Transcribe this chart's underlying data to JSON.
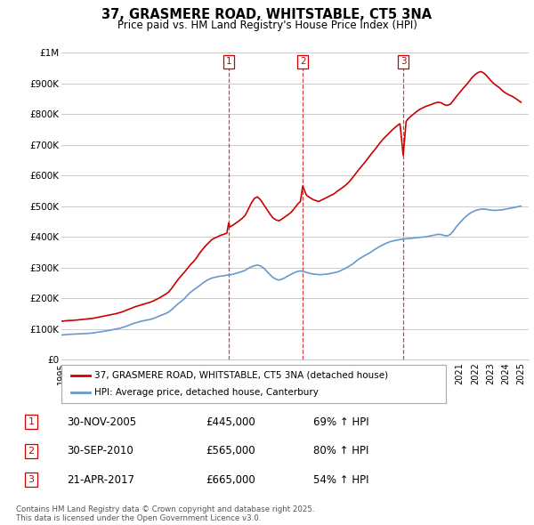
{
  "title": "37, GRASMERE ROAD, WHITSTABLE, CT5 3NA",
  "subtitle": "Price paid vs. HM Land Registry's House Price Index (HPI)",
  "x_start": 1995.0,
  "x_end": 2025.5,
  "y_min": 0,
  "y_max": 1000000,
  "y_ticks": [
    0,
    100000,
    200000,
    300000,
    400000,
    500000,
    600000,
    700000,
    800000,
    900000,
    1000000
  ],
  "y_tick_labels": [
    "£0",
    "£100K",
    "£200K",
    "£300K",
    "£400K",
    "£500K",
    "£600K",
    "£700K",
    "£800K",
    "£900K",
    "£1M"
  ],
  "vline1_x": 2005.917,
  "vline2_x": 2010.75,
  "vline3_x": 2017.31,
  "red_line_color": "#cc0000",
  "blue_line_color": "#6699cc",
  "vline_color": "#cc0000",
  "grid_color": "#cccccc",
  "background_color": "#ffffff",
  "legend_label_red": "37, GRASMERE ROAD, WHITSTABLE, CT5 3NA (detached house)",
  "legend_label_blue": "HPI: Average price, detached house, Canterbury",
  "transaction1_date": "30-NOV-2005",
  "transaction1_price": "£445,000",
  "transaction1_hpi": "69% ↑ HPI",
  "transaction2_date": "30-SEP-2010",
  "transaction2_price": "£565,000",
  "transaction2_hpi": "80% ↑ HPI",
  "transaction3_date": "21-APR-2017",
  "transaction3_price": "£665,000",
  "transaction3_hpi": "54% ↑ HPI",
  "footer_line1": "Contains HM Land Registry data © Crown copyright and database right 2025.",
  "footer_line2": "This data is licensed under the Open Government Licence v3.0.",
  "red_hpi_data": [
    [
      1995.0,
      125000
    ],
    [
      1995.2,
      126000
    ],
    [
      1995.4,
      127000
    ],
    [
      1995.6,
      127500
    ],
    [
      1995.8,
      128000
    ],
    [
      1996.0,
      129000
    ],
    [
      1996.2,
      130000
    ],
    [
      1996.4,
      131000
    ],
    [
      1996.6,
      132000
    ],
    [
      1996.8,
      133000
    ],
    [
      1997.0,
      134000
    ],
    [
      1997.2,
      136000
    ],
    [
      1997.4,
      138000
    ],
    [
      1997.6,
      140000
    ],
    [
      1997.8,
      142000
    ],
    [
      1998.0,
      144000
    ],
    [
      1998.2,
      146000
    ],
    [
      1998.4,
      148000
    ],
    [
      1998.6,
      150000
    ],
    [
      1998.8,
      153000
    ],
    [
      1999.0,
      156000
    ],
    [
      1999.2,
      160000
    ],
    [
      1999.4,
      164000
    ],
    [
      1999.6,
      168000
    ],
    [
      1999.8,
      172000
    ],
    [
      2000.0,
      175000
    ],
    [
      2000.2,
      178000
    ],
    [
      2000.4,
      181000
    ],
    [
      2000.6,
      184000
    ],
    [
      2000.8,
      187000
    ],
    [
      2001.0,
      191000
    ],
    [
      2001.2,
      196000
    ],
    [
      2001.4,
      201000
    ],
    [
      2001.6,
      207000
    ],
    [
      2001.8,
      213000
    ],
    [
      2002.0,
      220000
    ],
    [
      2002.2,
      232000
    ],
    [
      2002.4,
      246000
    ],
    [
      2002.6,
      260000
    ],
    [
      2002.8,
      272000
    ],
    [
      2003.0,
      283000
    ],
    [
      2003.2,
      295000
    ],
    [
      2003.4,
      308000
    ],
    [
      2003.6,
      318000
    ],
    [
      2003.8,
      330000
    ],
    [
      2004.0,
      345000
    ],
    [
      2004.2,
      358000
    ],
    [
      2004.4,
      370000
    ],
    [
      2004.6,
      380000
    ],
    [
      2004.8,
      390000
    ],
    [
      2005.0,
      396000
    ],
    [
      2005.2,
      400000
    ],
    [
      2005.4,
      405000
    ],
    [
      2005.6,
      408000
    ],
    [
      2005.8,
      412000
    ],
    [
      2005.917,
      445000
    ],
    [
      2006.0,
      432000
    ],
    [
      2006.2,
      438000
    ],
    [
      2006.4,
      445000
    ],
    [
      2006.6,
      452000
    ],
    [
      2006.8,
      460000
    ],
    [
      2007.0,
      470000
    ],
    [
      2007.2,
      490000
    ],
    [
      2007.4,
      510000
    ],
    [
      2007.6,
      525000
    ],
    [
      2007.8,
      530000
    ],
    [
      2008.0,
      520000
    ],
    [
      2008.2,
      505000
    ],
    [
      2008.4,
      490000
    ],
    [
      2008.6,
      475000
    ],
    [
      2008.8,
      462000
    ],
    [
      2009.0,
      455000
    ],
    [
      2009.2,
      452000
    ],
    [
      2009.4,
      458000
    ],
    [
      2009.6,
      465000
    ],
    [
      2009.8,
      472000
    ],
    [
      2010.0,
      480000
    ],
    [
      2010.2,
      492000
    ],
    [
      2010.4,
      505000
    ],
    [
      2010.6,
      515000
    ],
    [
      2010.75,
      565000
    ],
    [
      2011.0,
      535000
    ],
    [
      2011.2,
      528000
    ],
    [
      2011.4,
      522000
    ],
    [
      2011.6,
      518000
    ],
    [
      2011.8,
      515000
    ],
    [
      2012.0,
      520000
    ],
    [
      2012.2,
      525000
    ],
    [
      2012.4,
      530000
    ],
    [
      2012.6,
      535000
    ],
    [
      2012.8,
      540000
    ],
    [
      2013.0,
      548000
    ],
    [
      2013.2,
      555000
    ],
    [
      2013.4,
      562000
    ],
    [
      2013.6,
      570000
    ],
    [
      2013.8,
      580000
    ],
    [
      2014.0,
      592000
    ],
    [
      2014.2,
      605000
    ],
    [
      2014.4,
      618000
    ],
    [
      2014.6,
      630000
    ],
    [
      2014.8,
      642000
    ],
    [
      2015.0,
      655000
    ],
    [
      2015.2,
      668000
    ],
    [
      2015.4,
      680000
    ],
    [
      2015.6,
      693000
    ],
    [
      2015.8,
      706000
    ],
    [
      2016.0,
      718000
    ],
    [
      2016.2,
      728000
    ],
    [
      2016.4,
      738000
    ],
    [
      2016.6,
      748000
    ],
    [
      2016.8,
      757000
    ],
    [
      2017.0,
      765000
    ],
    [
      2017.1,
      768000
    ],
    [
      2017.31,
      665000
    ],
    [
      2017.5,
      775000
    ],
    [
      2017.6,
      782000
    ],
    [
      2017.8,
      792000
    ],
    [
      2018.0,
      800000
    ],
    [
      2018.2,
      808000
    ],
    [
      2018.4,
      815000
    ],
    [
      2018.6,
      820000
    ],
    [
      2018.8,
      825000
    ],
    [
      2019.0,
      828000
    ],
    [
      2019.2,
      832000
    ],
    [
      2019.4,
      836000
    ],
    [
      2019.6,
      838000
    ],
    [
      2019.8,
      836000
    ],
    [
      2020.0,
      830000
    ],
    [
      2020.2,
      828000
    ],
    [
      2020.4,
      832000
    ],
    [
      2020.6,
      845000
    ],
    [
      2020.8,
      858000
    ],
    [
      2021.0,
      870000
    ],
    [
      2021.2,
      882000
    ],
    [
      2021.4,
      893000
    ],
    [
      2021.6,
      905000
    ],
    [
      2021.8,
      918000
    ],
    [
      2022.0,
      928000
    ],
    [
      2022.2,
      935000
    ],
    [
      2022.4,
      938000
    ],
    [
      2022.6,
      932000
    ],
    [
      2022.8,
      922000
    ],
    [
      2023.0,
      910000
    ],
    [
      2023.2,
      900000
    ],
    [
      2023.4,
      892000
    ],
    [
      2023.6,
      885000
    ],
    [
      2023.8,
      875000
    ],
    [
      2024.0,
      868000
    ],
    [
      2024.2,
      862000
    ],
    [
      2024.4,
      858000
    ],
    [
      2024.6,
      852000
    ],
    [
      2024.8,
      845000
    ],
    [
      2025.0,
      838000
    ]
  ],
  "blue_hpi_data": [
    [
      1995.0,
      80000
    ],
    [
      1995.2,
      81000
    ],
    [
      1995.4,
      82000
    ],
    [
      1995.6,
      82500
    ],
    [
      1995.8,
      83000
    ],
    [
      1996.0,
      83500
    ],
    [
      1996.2,
      84000
    ],
    [
      1996.4,
      84500
    ],
    [
      1996.6,
      85000
    ],
    [
      1996.8,
      85500
    ],
    [
      1997.0,
      86500
    ],
    [
      1997.2,
      88000
    ],
    [
      1997.4,
      89500
    ],
    [
      1997.6,
      91000
    ],
    [
      1997.8,
      92500
    ],
    [
      1998.0,
      94000
    ],
    [
      1998.2,
      96000
    ],
    [
      1998.4,
      98000
    ],
    [
      1998.6,
      100000
    ],
    [
      1998.8,
      102000
    ],
    [
      1999.0,
      105000
    ],
    [
      1999.2,
      108000
    ],
    [
      1999.4,
      112000
    ],
    [
      1999.6,
      116000
    ],
    [
      1999.8,
      119000
    ],
    [
      2000.0,
      122000
    ],
    [
      2000.2,
      125000
    ],
    [
      2000.4,
      127000
    ],
    [
      2000.6,
      129000
    ],
    [
      2000.8,
      131000
    ],
    [
      2001.0,
      134000
    ],
    [
      2001.2,
      138000
    ],
    [
      2001.4,
      142000
    ],
    [
      2001.6,
      146000
    ],
    [
      2001.8,
      150000
    ],
    [
      2002.0,
      155000
    ],
    [
      2002.2,
      163000
    ],
    [
      2002.4,
      172000
    ],
    [
      2002.6,
      181000
    ],
    [
      2002.8,
      189000
    ],
    [
      2003.0,
      197000
    ],
    [
      2003.2,
      208000
    ],
    [
      2003.4,
      218000
    ],
    [
      2003.6,
      226000
    ],
    [
      2003.8,
      233000
    ],
    [
      2004.0,
      240000
    ],
    [
      2004.2,
      248000
    ],
    [
      2004.4,
      255000
    ],
    [
      2004.6,
      261000
    ],
    [
      2004.8,
      265000
    ],
    [
      2005.0,
      268000
    ],
    [
      2005.2,
      270000
    ],
    [
      2005.4,
      272000
    ],
    [
      2005.6,
      273000
    ],
    [
      2005.8,
      275000
    ],
    [
      2006.0,
      276000
    ],
    [
      2006.2,
      278000
    ],
    [
      2006.4,
      281000
    ],
    [
      2006.6,
      284000
    ],
    [
      2006.8,
      287000
    ],
    [
      2007.0,
      291000
    ],
    [
      2007.2,
      297000
    ],
    [
      2007.4,
      302000
    ],
    [
      2007.6,
      306000
    ],
    [
      2007.8,
      308000
    ],
    [
      2008.0,
      305000
    ],
    [
      2008.2,
      298000
    ],
    [
      2008.4,
      288000
    ],
    [
      2008.6,
      277000
    ],
    [
      2008.8,
      268000
    ],
    [
      2009.0,
      262000
    ],
    [
      2009.2,
      259000
    ],
    [
      2009.4,
      262000
    ],
    [
      2009.6,
      267000
    ],
    [
      2009.8,
      273000
    ],
    [
      2010.0,
      278000
    ],
    [
      2010.2,
      283000
    ],
    [
      2010.4,
      287000
    ],
    [
      2010.6,
      289000
    ],
    [
      2010.8,
      287000
    ],
    [
      2011.0,
      284000
    ],
    [
      2011.2,
      281000
    ],
    [
      2011.4,
      279000
    ],
    [
      2011.6,
      278000
    ],
    [
      2011.8,
      277000
    ],
    [
      2012.0,
      277000
    ],
    [
      2012.2,
      278000
    ],
    [
      2012.4,
      279000
    ],
    [
      2012.6,
      281000
    ],
    [
      2012.8,
      283000
    ],
    [
      2013.0,
      285000
    ],
    [
      2013.2,
      289000
    ],
    [
      2013.4,
      294000
    ],
    [
      2013.6,
      299000
    ],
    [
      2013.8,
      305000
    ],
    [
      2014.0,
      311000
    ],
    [
      2014.2,
      319000
    ],
    [
      2014.4,
      327000
    ],
    [
      2014.6,
      333000
    ],
    [
      2014.8,
      339000
    ],
    [
      2015.0,
      344000
    ],
    [
      2015.2,
      350000
    ],
    [
      2015.4,
      357000
    ],
    [
      2015.6,
      363000
    ],
    [
      2015.8,
      369000
    ],
    [
      2016.0,
      374000
    ],
    [
      2016.2,
      379000
    ],
    [
      2016.4,
      383000
    ],
    [
      2016.6,
      386000
    ],
    [
      2016.8,
      388000
    ],
    [
      2017.0,
      390000
    ],
    [
      2017.2,
      392000
    ],
    [
      2017.4,
      393000
    ],
    [
      2017.6,
      394000
    ],
    [
      2017.8,
      395000
    ],
    [
      2018.0,
      396000
    ],
    [
      2018.2,
      397000
    ],
    [
      2018.4,
      398000
    ],
    [
      2018.6,
      399000
    ],
    [
      2018.8,
      400000
    ],
    [
      2019.0,
      402000
    ],
    [
      2019.2,
      404000
    ],
    [
      2019.4,
      406000
    ],
    [
      2019.6,
      408000
    ],
    [
      2019.8,
      407000
    ],
    [
      2020.0,
      404000
    ],
    [
      2020.2,
      403000
    ],
    [
      2020.4,
      408000
    ],
    [
      2020.6,
      420000
    ],
    [
      2020.8,
      434000
    ],
    [
      2021.0,
      445000
    ],
    [
      2021.2,
      456000
    ],
    [
      2021.4,
      466000
    ],
    [
      2021.6,
      474000
    ],
    [
      2021.8,
      480000
    ],
    [
      2022.0,
      485000
    ],
    [
      2022.2,
      488000
    ],
    [
      2022.4,
      490000
    ],
    [
      2022.6,
      490000
    ],
    [
      2022.8,
      489000
    ],
    [
      2023.0,
      487000
    ],
    [
      2023.2,
      486000
    ],
    [
      2023.4,
      486000
    ],
    [
      2023.6,
      487000
    ],
    [
      2023.8,
      488000
    ],
    [
      2024.0,
      490000
    ],
    [
      2024.2,
      492000
    ],
    [
      2024.4,
      494000
    ],
    [
      2024.6,
      496000
    ],
    [
      2024.8,
      498000
    ],
    [
      2025.0,
      500000
    ]
  ],
  "xticks": [
    1995,
    1996,
    1997,
    1998,
    1999,
    2000,
    2001,
    2002,
    2003,
    2004,
    2005,
    2006,
    2007,
    2008,
    2009,
    2010,
    2011,
    2012,
    2013,
    2014,
    2015,
    2016,
    2017,
    2018,
    2019,
    2020,
    2021,
    2022,
    2023,
    2024,
    2025
  ]
}
